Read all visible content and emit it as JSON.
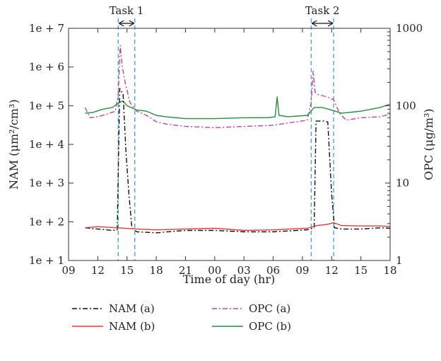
{
  "chart_data": {
    "type": "line",
    "xlabel": "Time of day (hr)",
    "ylabel_left": "NAM (μm²/cm³)",
    "ylabel_right": "OPC (μg/m³)",
    "x_tick_labels": [
      "09",
      "12",
      "15",
      "18",
      "21",
      "00",
      "03",
      "06",
      "09",
      "12",
      "15",
      "18"
    ],
    "x_range_hours": [
      0,
      33
    ],
    "y_left_scale": "log",
    "y_left_range": [
      10,
      10000000
    ],
    "y_left_tick_labels": [
      "1e + 1",
      "1e + 2",
      "1e + 3",
      "1e + 4",
      "1e + 5",
      "1e + 6",
      "1e + 7"
    ],
    "y_right_scale": "log",
    "y_right_range": [
      1,
      1000
    ],
    "y_right_tick_labels": [
      "1",
      "10",
      "100",
      "1000"
    ],
    "grid": false,
    "legend_position": "bottom",
    "annotations": [
      {
        "label": "Task 1",
        "start_hour": 5.1,
        "end_hour": 6.8
      },
      {
        "label": "Task 2",
        "start_hour": 24.9,
        "end_hour": 27.2
      }
    ],
    "series": [
      {
        "name": "NAM (a)",
        "axis": "left",
        "color": "#111111",
        "dash": "dashdot",
        "points": [
          [
            1.7,
            70
          ],
          [
            3,
            65
          ],
          [
            4.5,
            60
          ],
          [
            5.0,
            62
          ],
          [
            5.25,
            280000
          ],
          [
            5.6,
            200000
          ],
          [
            5.9,
            6000
          ],
          [
            6.2,
            500
          ],
          [
            6.5,
            70
          ],
          [
            7,
            55
          ],
          [
            9,
            52
          ],
          [
            12,
            60
          ],
          [
            15,
            60
          ],
          [
            18,
            55
          ],
          [
            21,
            55
          ],
          [
            24.5,
            62
          ],
          [
            25.2,
            70
          ],
          [
            25.4,
            40000
          ],
          [
            26.2,
            40000
          ],
          [
            26.6,
            38000
          ],
          [
            27.0,
            500
          ],
          [
            27.3,
            70
          ],
          [
            28,
            65
          ],
          [
            30,
            65
          ],
          [
            32,
            70
          ],
          [
            33,
            68
          ]
        ]
      },
      {
        "name": "NAM (b)",
        "axis": "left",
        "color": "#e23b3b",
        "dash": "solid",
        "points": [
          [
            1.7,
            70
          ],
          [
            3,
            75
          ],
          [
            5,
            70
          ],
          [
            7,
            65
          ],
          [
            9,
            62
          ],
          [
            12,
            65
          ],
          [
            15,
            68
          ],
          [
            18,
            60
          ],
          [
            21,
            62
          ],
          [
            24.5,
            68
          ],
          [
            25.5,
            80
          ],
          [
            26.5,
            85
          ],
          [
            27.2,
            95
          ],
          [
            28,
            80
          ],
          [
            30,
            78
          ],
          [
            32,
            78
          ],
          [
            33,
            75
          ]
        ]
      },
      {
        "name": "OPC (a)",
        "axis": "right",
        "color": "#c1439a",
        "dash": "dashdot",
        "points": [
          [
            1.7,
            95
          ],
          [
            2.2,
            70
          ],
          [
            3,
            72
          ],
          [
            4,
            78
          ],
          [
            4.8,
            85
          ],
          [
            5.1,
            140
          ],
          [
            5.3,
            600
          ],
          [
            5.5,
            330
          ],
          [
            5.8,
            200
          ],
          [
            6.3,
            110
          ],
          [
            7,
            85
          ],
          [
            8,
            75
          ],
          [
            9,
            62
          ],
          [
            10,
            58
          ],
          [
            12,
            54
          ],
          [
            15,
            52
          ],
          [
            18,
            54
          ],
          [
            21,
            56
          ],
          [
            24.5,
            65
          ],
          [
            24.9,
            110
          ],
          [
            25.1,
            280
          ],
          [
            25.3,
            150
          ],
          [
            25.6,
            140
          ],
          [
            26.5,
            130
          ],
          [
            27.2,
            120
          ],
          [
            27.8,
            80
          ],
          [
            28.5,
            65
          ],
          [
            30,
            70
          ],
          [
            32,
            72
          ],
          [
            33,
            78
          ]
        ]
      },
      {
        "name": "OPC (b)",
        "axis": "right",
        "color": "#2e8b3e",
        "dash": "solid",
        "points": [
          [
            1.7,
            80
          ],
          [
            2.5,
            82
          ],
          [
            3.5,
            90
          ],
          [
            4.5,
            95
          ],
          [
            5.2,
            110
          ],
          [
            5.6,
            115
          ],
          [
            6,
            100
          ],
          [
            7,
            88
          ],
          [
            8,
            85
          ],
          [
            9,
            75
          ],
          [
            10,
            72
          ],
          [
            12,
            68
          ],
          [
            15,
            68
          ],
          [
            18,
            70
          ],
          [
            20.5,
            70
          ],
          [
            21.2,
            72
          ],
          [
            21.4,
            130
          ],
          [
            21.6,
            75
          ],
          [
            22.5,
            72
          ],
          [
            24.5,
            75
          ],
          [
            25.2,
            95
          ],
          [
            26,
            95
          ],
          [
            27,
            88
          ],
          [
            28,
            80
          ],
          [
            30,
            85
          ],
          [
            32,
            95
          ],
          [
            33,
            105
          ]
        ]
      }
    ]
  }
}
